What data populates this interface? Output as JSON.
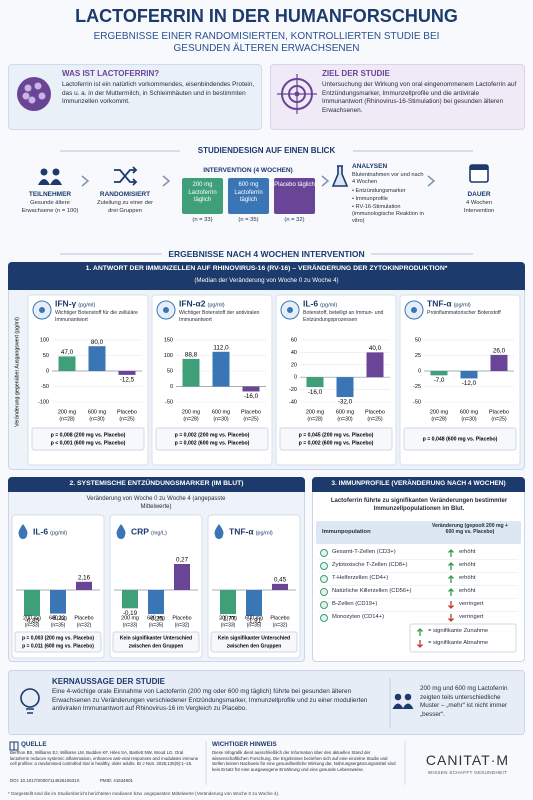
{
  "header": {
    "title": "LACTOFERRIN IN DER HUMANFORSCHUNG",
    "subtitle": "ERGEBNISSE EINER RANDOMISIERTEN, KONTROLLIERTEN STUDIE BEI GESUNDEN ÄLTEREN ERWACHSENEN"
  },
  "intro": [
    {
      "title": "WAS IST LACTOFERRIN?",
      "text": "Lactoferrin ist ein natürlich vorkommendes, eisenbindendes Protein, das u. a. in der Muttermilch, in Schleimhäuten und in bestimmten Immunzellen vorkommt."
    },
    {
      "title": "ZIEL DER STUDIE",
      "text": "Untersuchung der Wirkung von oral eingenommenem Lactoferrin auf Entzündungsmarker, Immunzellprofile und die antivirale Immunantwort (Rhinovirus-16-Stimulation) bei gesunden älteren Erwachsenen."
    }
  ],
  "design": {
    "title": "STUDIENDESIGN AUF EINEN BLICK",
    "participants": {
      "label": "TEILNEHMER",
      "text": "Gesunde ältere Erwachsene (n = 100)"
    },
    "randomized": {
      "label": "RANDOMISIERT",
      "text": "Zuteilung zu einer der drei Gruppen"
    },
    "intervention": {
      "label": "INTERVENTION (4 WOCHEN)",
      "groups": [
        {
          "text": "200 mg Lactoferrin täglich",
          "n": "(n = 33)"
        },
        {
          "text": "600 mg Lactoferrin täglich",
          "n": "(n = 35)"
        },
        {
          "text": "Placebo täglich",
          "n": "(n = 32)"
        }
      ]
    },
    "analyses": {
      "label": "ANALYSEN",
      "text": "Blutentnahmen vor und nach 4 Wochen",
      "items": [
        "Entzündungsmarker",
        "Immunprofile",
        "RV-16-Stimulation (immunologische Reaktion in vitro)"
      ]
    },
    "duration": {
      "label": "DAUER",
      "text": "4 Wochen Intervention"
    }
  },
  "group_colors": [
    "#3f9f78",
    "#3a76b6",
    "#6a4597"
  ],
  "results_title": "ERGEBNISSE NACH 4 WOCHEN INTERVENTION",
  "cytokines": {
    "title": "1. ANTWORT DER IMMUNZELLEN AUF RHINOVIRUS-16 (RV-16) – VERÄNDERUNG DER ZYTOKINPRODUKTION*",
    "subtitle": "(Median der Veränderung von Woche 0 zu Woche 4)",
    "y_label": "Veränderung gegenüber Ausgangswert (pg/ml)",
    "categories": [
      "200 mg",
      "600 mg",
      "Placebo"
    ],
    "n": [
      "(n=28)",
      "(n=30)",
      "(n=25)"
    ],
    "panels": [
      {
        "name": "IFN-γ",
        "unit": "(pg/ml)",
        "desc": "Wichtiger Botenstoff für die zelluläre Immunantwort",
        "values": [
          47.0,
          80.0,
          -12.5
        ],
        "value_labels": [
          "47,0",
          "80,0",
          "-12,5"
        ],
        "ylim": [
          -100,
          100
        ],
        "yticks": [
          -100,
          -50,
          0,
          50,
          100
        ],
        "p_values": [
          "p = 0,008 (200 mg vs. Placebo)",
          "p < 0,001 (600 mg vs. Placebo)"
        ]
      },
      {
        "name": "IFN-α2",
        "unit": "(pg/ml)",
        "desc": "Wichtiger Botenstoff der antiviralen Immunantwort",
        "values": [
          88.8,
          112.0,
          -16.0
        ],
        "value_labels": [
          "88,8",
          "112,0",
          "-16,0"
        ],
        "ylim": [
          -50,
          150
        ],
        "yticks": [
          -50,
          0,
          50,
          100,
          150
        ],
        "p_values": [
          "p = 0,002 (200 mg vs. Placebo)",
          "p = 0,002 (600 mg vs. Placebo)"
        ]
      },
      {
        "name": "IL-6",
        "unit": "(pg/ml)",
        "desc": "Botenstoff, beteiligt an Immun- und Entzündungsprozessen",
        "values": [
          -16.0,
          -32.0,
          40.0
        ],
        "value_labels": [
          "-16,0",
          "-32,0",
          "40,0"
        ],
        "ylim": [
          -40,
          60
        ],
        "yticks": [
          -40,
          -20,
          0,
          20,
          40,
          60
        ],
        "p_values": [
          "p = 0,045 (200 mg vs. Placebo)",
          "p = 0,002 (600 mg vs. Placebo)"
        ]
      },
      {
        "name": "TNF-α",
        "unit": "(pg/ml)",
        "desc": "Proinflammatorischer Botenstoff",
        "values": [
          -7.0,
          -12.0,
          26.0
        ],
        "value_labels": [
          "-7,0",
          "-12,0",
          "26,0"
        ],
        "ylim": [
          -50,
          50
        ],
        "yticks": [
          -50,
          -25,
          0,
          25,
          50
        ],
        "p_values": [
          "p = 0,048 (600 mg vs. Placebo)"
        ]
      }
    ]
  },
  "systemic": {
    "title": "2. SYSTEMISCHE ENTZÜNDUNGSMARKER (IM BLUT)",
    "subtitle": "Veränderung von Woche 0 zu Woche 4 (angepasste Mittelwerte)",
    "categories": [
      "200 mg",
      "600 mg",
      "Placebo"
    ],
    "n": [
      "(n=33)",
      "(n=35)",
      "(n=32)"
    ],
    "panels": [
      {
        "name": "IL-6",
        "unit": "(pg/ml)",
        "values": [
          -6.85,
          -6.22,
          2.16
        ],
        "value_labels": [
          "-6,85",
          "-6,22",
          "2,16"
        ],
        "notes": [
          "p = 0,003 (200 mg vs. Placebo)",
          "p = 0,011 (600 mg vs. Placebo)"
        ]
      },
      {
        "name": "CRP",
        "unit": "(mg/L)",
        "values": [
          -0.19,
          -0.25,
          0.27
        ],
        "value_labels": [
          "-0,19",
          "-0,25",
          "0,27"
        ],
        "notes": [
          "Kein signifikanter Unterschied",
          "zwischen den Gruppen"
        ]
      },
      {
        "name": "TNF-α",
        "unit": "(pg/ml)",
        "values": [
          -1.77,
          -1.91,
          0.45
        ],
        "value_labels": [
          "-1,77",
          "-1,91",
          "0,45"
        ],
        "notes": [
          "Kein signifikanter Unterschied",
          "zwischen den Gruppen"
        ]
      }
    ]
  },
  "immune": {
    "title": "3. IMMUNPROFILE (VERÄNDERUNG NACH 4 WOCHEN)",
    "intro": "Lactoferrin führte zu signifikanten Veränderungen bestimmter Immunzellpopulationen im Blut.",
    "col_headers": [
      "Immunpopulation",
      "Veränderung (gepoolt 200 mg + 600 mg vs. Placebo)"
    ],
    "rows": [
      {
        "population": "Gesamt-T-Zellen (CD3+)",
        "change": "erhöht",
        "color": "#2e9a4e"
      },
      {
        "population": "Zytotoxische T-Zellen (CD8+)",
        "change": "erhöht",
        "color": "#2e9a4e"
      },
      {
        "population": "T-Helferzellen (CD4+)",
        "change": "erhöht",
        "color": "#2e9a4e"
      },
      {
        "population": "Natürliche Killerzellen (CD56+)",
        "change": "erhöht",
        "color": "#2e9a4e"
      },
      {
        "population": "B-Zellen (CD19+)",
        "change": "verringert",
        "color": "#c0392b"
      },
      {
        "population": "Monozyten (CD14+)",
        "change": "verringert",
        "color": "#c0392b"
      }
    ],
    "legend": [
      {
        "text": "= signifikante Zunahme",
        "color": "#2e9a4e"
      },
      {
        "text": "= signifikante Abnahme",
        "color": "#c0392b"
      }
    ]
  },
  "key_message": {
    "title": "KERNAUSSAGE DER STUDIE",
    "text": "Eine 4-wöchige orale Einnahme von Lactoferrin (200 mg oder 600 mg täglich) führte bei gesunden älteren Erwachsenen zu Veränderungen verschiedener Entzündungsmarker, Immunzellprofile und zu einer modulierten antiviralen Immunantwort auf Rhinovirus-16 im Vergleich zu Placebo.",
    "side_text": "200 mg und 600 mg Lactoferrin zeigten teils unterschiedliche Muster – „mehr“ ist nicht immer „besser“."
  },
  "footer": {
    "source_title": "QUELLE",
    "source": "Berthon BS, Williams EJ, Williams LM, Budden KF, Hiles SA, Bartlett NW, Wood LG. Oral lactoferrin reduces systemic inflammation, enhances anti-viral responses and modulates immune cell profiles: a randomised controlled trial in healthy, older adults. Br J Nutr. 2026;135(9):1–15.",
    "doi": "DOI: 10.1017/S000711452610631X",
    "pmid": "PMID: 41634901",
    "note_title": "WICHTIGER HINWEIS",
    "note": "Diese Infografik dient ausschließlich der Information über den aktuellen Stand der wissenschaftlichen Forschung. Die Ergebnisse beziehen sich auf eine einzelne Studie und stellen keinen Nachweis für eine gesundheitliche Wirkung dar. Nahrungsergänzungsmittel sind kein Ersatz für eine ausgewogene Ernährung und eine gesunde Lebensweise.",
    "logo": "CANITAT·M",
    "tagline": "WISSEN SCHAFFT GESUNDHEIT",
    "footnote": "* Dargestellt sind die im Studienbericht berichteten medianen bzw. angepassten Mittelwerte (Veränderung von Woche 0 zu Woche 4)."
  }
}
